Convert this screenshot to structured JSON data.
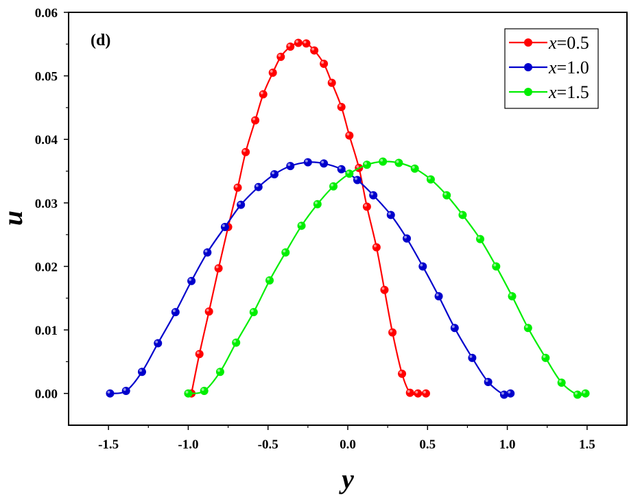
{
  "chart_data": {
    "type": "line",
    "title": "",
    "panel_label": "(d)",
    "xlabel": "y",
    "ylabel": "u",
    "xlim": [
      -1.75,
      1.75
    ],
    "ylim": [
      -0.005,
      0.06
    ],
    "x_ticks": [
      -1.5,
      -1.0,
      -0.5,
      0.0,
      0.5,
      1.0,
      1.5
    ],
    "x_tick_labels": [
      "-1.5",
      "-1.0",
      "-0.5",
      "0.0",
      "0.5",
      "1.0",
      "1.5"
    ],
    "y_ticks": [
      0.0,
      0.01,
      0.02,
      0.03,
      0.04,
      0.05,
      0.06
    ],
    "y_tick_labels": [
      "0.00",
      "0.01",
      "0.02",
      "0.03",
      "0.04",
      "0.05",
      "0.06"
    ],
    "grid": false,
    "legend_position": "top-right",
    "series": [
      {
        "name": "x=0.5",
        "var": "x",
        "value_text": "=0.5",
        "color": "#ff0000",
        "x": [
          -0.98,
          -0.93,
          -0.87,
          -0.81,
          -0.75,
          -0.69,
          -0.64,
          -0.58,
          -0.53,
          -0.47,
          -0.42,
          -0.36,
          -0.31,
          -0.26,
          -0.21,
          -0.15,
          -0.1,
          -0.04,
          0.01,
          0.07,
          0.12,
          0.18,
          0.23,
          0.28,
          0.34,
          0.39,
          0.44,
          0.49
        ],
        "y": [
          0.0,
          0.0062,
          0.0129,
          0.0197,
          0.0262,
          0.0324,
          0.038,
          0.043,
          0.0471,
          0.0505,
          0.053,
          0.0546,
          0.0552,
          0.0551,
          0.054,
          0.0519,
          0.0489,
          0.0451,
          0.0406,
          0.0355,
          0.0294,
          0.023,
          0.0163,
          0.0096,
          0.0031,
          0.0001,
          0.0,
          0.0
        ]
      },
      {
        "name": "x=1.0",
        "var": "x",
        "value_text": "=1.0",
        "color": "#0000cc",
        "x": [
          -1.49,
          -1.39,
          -1.29,
          -1.19,
          -1.08,
          -0.98,
          -0.88,
          -0.77,
          -0.67,
          -0.56,
          -0.46,
          -0.36,
          -0.25,
          -0.15,
          -0.04,
          0.06,
          0.16,
          0.27,
          0.37,
          0.47,
          0.57,
          0.67,
          0.78,
          0.88,
          0.98,
          1.02
        ],
        "y": [
          0.0,
          0.0004,
          0.0034,
          0.0079,
          0.0128,
          0.0177,
          0.0222,
          0.0262,
          0.0297,
          0.0325,
          0.0345,
          0.0358,
          0.0364,
          0.0362,
          0.0353,
          0.0336,
          0.0312,
          0.0281,
          0.0244,
          0.02,
          0.0153,
          0.0103,
          0.0056,
          0.0018,
          -0.0002,
          0.0
        ]
      },
      {
        "name": "x=1.5",
        "var": "x",
        "value_text": "=1.5",
        "color": "#00ee00",
        "x": [
          -1.0,
          -0.9,
          -0.8,
          -0.7,
          -0.59,
          -0.49,
          -0.39,
          -0.29,
          -0.19,
          -0.09,
          0.01,
          0.12,
          0.22,
          0.32,
          0.42,
          0.52,
          0.62,
          0.72,
          0.83,
          0.93,
          1.03,
          1.13,
          1.24,
          1.34,
          1.44,
          1.49
        ],
        "y": [
          0.0,
          0.0004,
          0.0034,
          0.008,
          0.0128,
          0.0178,
          0.0222,
          0.0264,
          0.0298,
          0.0326,
          0.0346,
          0.036,
          0.0365,
          0.0363,
          0.0354,
          0.0337,
          0.0312,
          0.0281,
          0.0243,
          0.02,
          0.0153,
          0.0103,
          0.0056,
          0.0017,
          -0.0002,
          0.0
        ]
      }
    ]
  }
}
